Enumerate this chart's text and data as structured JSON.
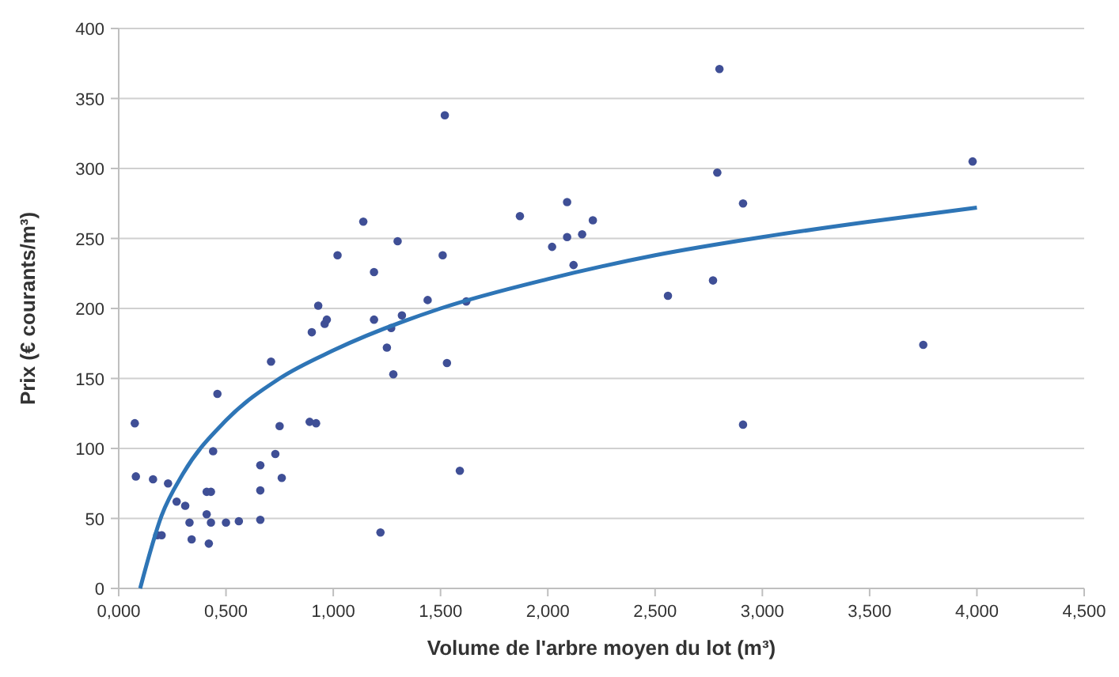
{
  "chart_data": {
    "type": "scatter",
    "xlabel": "Volume de l'arbre moyen du lot (m³)",
    "ylabel": "Prix (€ courants/m³)",
    "xlim": [
      0,
      4.5
    ],
    "ylim": [
      0,
      400
    ],
    "xticks": [
      {
        "value": 0,
        "label": "0,000"
      },
      {
        "value": 0.5,
        "label": "0,500"
      },
      {
        "value": 1,
        "label": "1,000"
      },
      {
        "value": 1.5,
        "label": "1,500"
      },
      {
        "value": 2,
        "label": "2,000"
      },
      {
        "value": 2.5,
        "label": "2,500"
      },
      {
        "value": 3,
        "label": "3,000"
      },
      {
        "value": 3.5,
        "label": "3,500"
      },
      {
        "value": 4,
        "label": "4,000"
      },
      {
        "value": 4.5,
        "label": "4,500"
      }
    ],
    "yticks": [
      0,
      50,
      100,
      150,
      200,
      250,
      300,
      350,
      400
    ],
    "grid": "y",
    "marker": "circle",
    "series": [
      {
        "color": "#3f4f96",
        "x": [
          0.075,
          0.08,
          0.16,
          0.23,
          0.18,
          0.2,
          0.27,
          0.31,
          0.33,
          0.34,
          0.41,
          0.43,
          0.41,
          0.43,
          0.42,
          0.44,
          0.46,
          0.5,
          0.56,
          0.66,
          0.66,
          0.66,
          0.71,
          0.73,
          0.75,
          0.76,
          0.89,
          0.92,
          0.9,
          0.93,
          0.96,
          0.97,
          1.02,
          1.19,
          1.3,
          1.19,
          1.25,
          1.28,
          1.22,
          1.27,
          1.32,
          1.44,
          1.51,
          1.53,
          1.59,
          1.62,
          1.52,
          1.14,
          1.87,
          2.09,
          2.21,
          2.16,
          2.09,
          2.02,
          2.12,
          2.79,
          2.91,
          2.56,
          2.77,
          3.75,
          2.91,
          3.98,
          2.8
        ],
        "values": [
          118,
          80,
          78,
          75,
          38,
          38,
          62,
          59,
          47,
          35,
          69,
          69,
          53,
          47,
          32,
          98,
          139,
          47,
          48,
          88,
          70,
          49,
          162,
          96,
          116,
          79,
          119,
          118,
          183,
          202,
          189,
          192,
          238,
          226,
          248,
          192,
          172,
          153,
          40,
          186,
          195,
          206,
          238,
          161,
          84,
          205,
          338,
          262,
          266,
          276,
          263,
          253,
          251,
          244,
          231,
          297,
          275,
          209,
          220,
          174,
          117,
          305,
          371
        ]
      },
      {
        "type": "line",
        "color": "#2e75b6",
        "marker": "none",
        "line_style": "solid",
        "x": [
          0.1,
          0.2,
          0.3,
          0.5,
          0.75,
          1.0,
          1.5,
          2.0,
          2.5,
          3.0,
          3.5,
          4.0
        ],
        "values": [
          0,
          52,
          82,
          120,
          150,
          170,
          200,
          221,
          238,
          251,
          262,
          272
        ]
      }
    ]
  }
}
